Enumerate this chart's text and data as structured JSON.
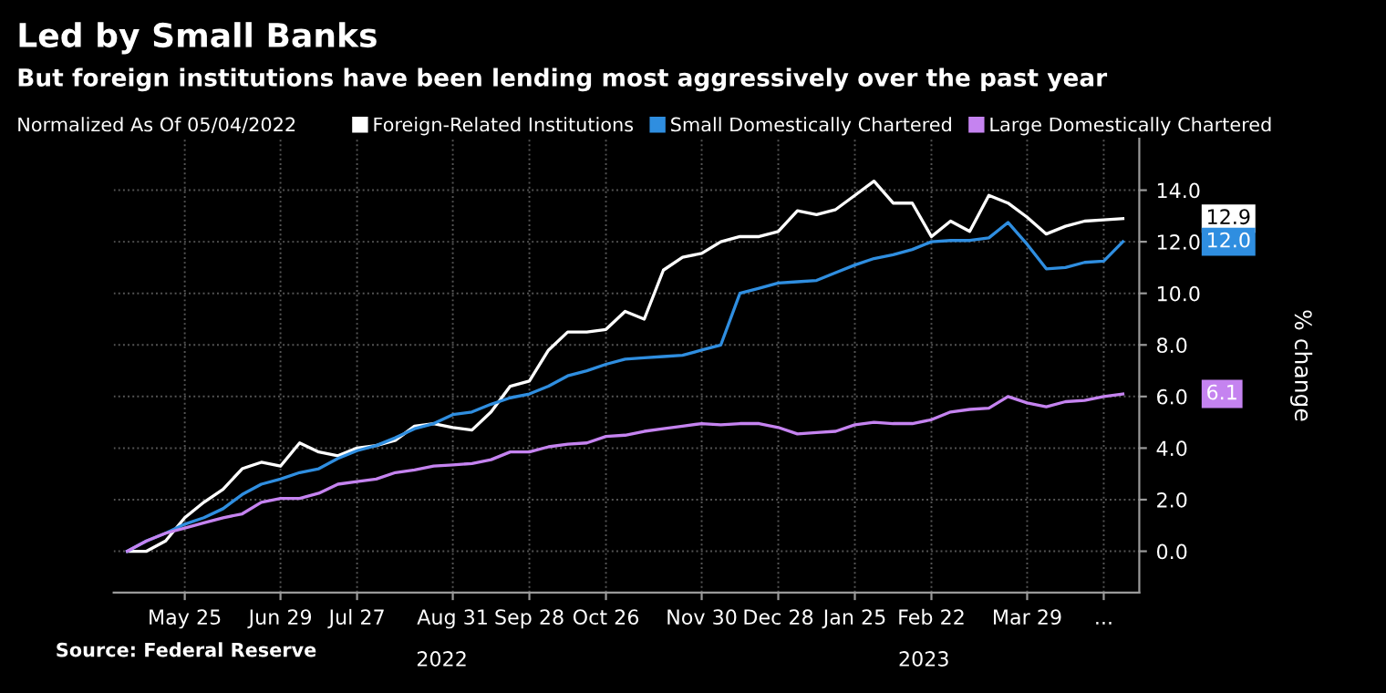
{
  "chart_data": {
    "type": "line",
    "title": "Led by Small Banks",
    "subtitle": "But foreign institutions have been lending most aggressively over the past year",
    "ylabel": "% change",
    "legend_title": "Normalized As Of 05/04/2022",
    "legend": "top",
    "grid": true,
    "marker": "none",
    "line_style": "solid",
    "x": [
      "2022-05-04",
      "2022-05-11",
      "2022-05-18",
      "2022-05-25",
      "2022-06-01",
      "2022-06-08",
      "2022-06-15",
      "2022-06-22",
      "2022-06-29",
      "2022-07-06",
      "2022-07-13",
      "2022-07-20",
      "2022-07-27",
      "2022-08-03",
      "2022-08-10",
      "2022-08-17",
      "2022-08-24",
      "2022-08-31",
      "2022-09-07",
      "2022-09-14",
      "2022-09-21",
      "2022-09-28",
      "2022-10-05",
      "2022-10-12",
      "2022-10-19",
      "2022-10-26",
      "2022-11-02",
      "2022-11-09",
      "2022-11-16",
      "2022-11-23",
      "2022-11-30",
      "2022-12-07",
      "2022-12-14",
      "2022-12-21",
      "2022-12-28",
      "2023-01-04",
      "2023-01-11",
      "2023-01-18",
      "2023-01-25",
      "2023-02-01",
      "2023-02-08",
      "2023-02-15",
      "2023-02-22",
      "2023-03-01",
      "2023-03-08",
      "2023-03-15",
      "2023-03-22",
      "2023-03-29",
      "2023-04-05",
      "2023-04-12",
      "2023-04-19",
      "2023-04-26",
      "2023-05-03"
    ],
    "series": [
      {
        "name": "Foreign-Related Institutions",
        "color": "#ffffff",
        "values": [
          0,
          0.0,
          0.4,
          1.3,
          1.9,
          2.4,
          3.2,
          3.45,
          3.3,
          4.2,
          3.85,
          3.7,
          4.0,
          4.1,
          4.3,
          4.85,
          4.95,
          4.8,
          4.7,
          5.4,
          6.4,
          6.6,
          7.8,
          8.5,
          8.5,
          8.6,
          9.3,
          9.0,
          10.9,
          11.4,
          11.55,
          12.0,
          12.2,
          12.2,
          12.4,
          13.2,
          13.05,
          13.25,
          13.8,
          14.35,
          13.5,
          13.5,
          12.2,
          12.8,
          12.4,
          13.8,
          13.5,
          12.95,
          12.3,
          12.6,
          12.8,
          12.85,
          12.9
        ]
      },
      {
        "name": "Small Domestically Chartered",
        "color": "#2f8ee0",
        "values": [
          0,
          0.4,
          0.7,
          1.05,
          1.3,
          1.65,
          2.2,
          2.6,
          2.8,
          3.05,
          3.2,
          3.6,
          3.9,
          4.1,
          4.4,
          4.75,
          4.95,
          5.3,
          5.4,
          5.7,
          5.95,
          6.1,
          6.4,
          6.8,
          7.0,
          7.25,
          7.45,
          7.5,
          7.55,
          7.6,
          7.8,
          8.0,
          10.0,
          10.2,
          10.4,
          10.45,
          10.5,
          10.8,
          11.1,
          11.35,
          11.5,
          11.7,
          12.0,
          12.05,
          12.05,
          12.15,
          12.75,
          11.9,
          10.95,
          11.0,
          11.2,
          11.25,
          12.0
        ]
      },
      {
        "name": "Large Domestically Chartered",
        "color": "#c583f0",
        "values": [
          0,
          0.4,
          0.7,
          0.9,
          1.1,
          1.3,
          1.45,
          1.9,
          2.05,
          2.05,
          2.25,
          2.6,
          2.7,
          2.8,
          3.05,
          3.15,
          3.3,
          3.35,
          3.4,
          3.55,
          3.85,
          3.85,
          4.05,
          4.15,
          4.2,
          4.45,
          4.5,
          4.65,
          4.75,
          4.85,
          4.95,
          4.9,
          4.95,
          4.95,
          4.8,
          4.55,
          4.6,
          4.65,
          4.9,
          5.0,
          4.95,
          4.95,
          5.1,
          5.4,
          5.5,
          5.55,
          6.0,
          5.75,
          5.6,
          5.8,
          5.85,
          6.0,
          6.1
        ]
      }
    ],
    "xlim": [
      "2022-04-29",
      "2023-05-09"
    ],
    "xticks": [
      {
        "value": "2022-05-25",
        "label": "May 25"
      },
      {
        "value": "2022-06-29",
        "label": "Jun 29"
      },
      {
        "value": "2022-07-27",
        "label": "Jul 27"
      },
      {
        "value": "2022-08-31",
        "label": "Aug 31"
      },
      {
        "value": "2022-09-28",
        "label": "Sep 28"
      },
      {
        "value": "2022-10-26",
        "label": "Oct 26"
      },
      {
        "value": "2022-11-30",
        "label": "Nov 30"
      },
      {
        "value": "2022-12-28",
        "label": "Dec 28"
      },
      {
        "value": "2023-01-25",
        "label": "Jan 25"
      },
      {
        "value": "2023-02-22",
        "label": "Feb 22"
      },
      {
        "value": "2023-03-29",
        "label": "Mar 29"
      },
      {
        "value": "2023-04-26",
        "label": "..."
      }
    ],
    "ylim": [
      -1.6,
      16
    ],
    "yticks": [
      {
        "value": 0,
        "label": "0.0"
      },
      {
        "value": 2,
        "label": "2.0"
      },
      {
        "value": 4,
        "label": "4.0"
      },
      {
        "value": 6,
        "label": "6.0"
      },
      {
        "value": 8,
        "label": "8.0"
      },
      {
        "value": 10,
        "label": "10.0"
      },
      {
        "value": 12,
        "label": "12.0"
      },
      {
        "value": 14,
        "label": "14.0"
      }
    ],
    "annotations": [
      "12.9",
      "12.0",
      "6.1",
      "2022",
      "2023",
      "Source: Federal Reserve"
    ]
  }
}
